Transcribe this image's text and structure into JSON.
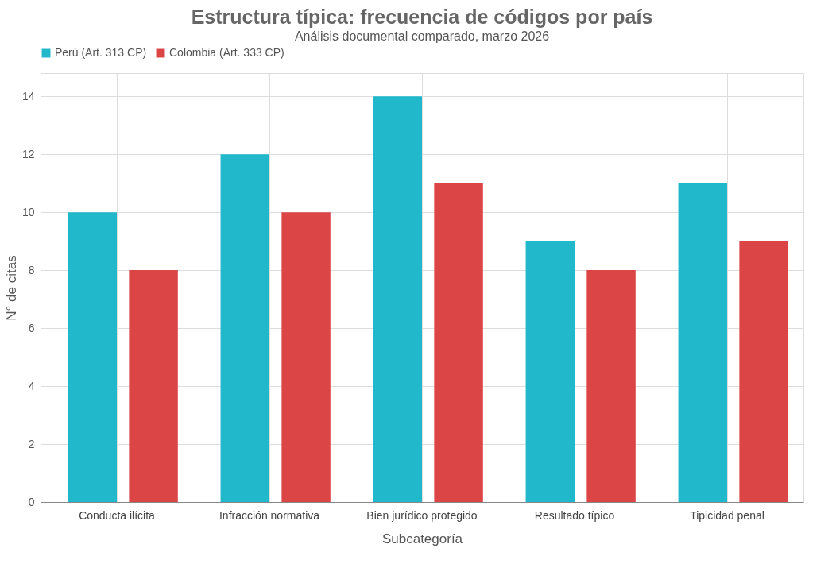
{
  "chart_data": {
    "type": "bar",
    "title": "Estructura típica: frecuencia de códigos por país",
    "subtitle": "Análisis documental comparado, marzo 2026",
    "xlabel": "Subcategoría",
    "ylabel": "N° de citas",
    "categories": [
      "Conducta ilícita",
      "Infracción normativa",
      "Bien jurídico protegido",
      "Resultado típico",
      "Tipicidad penal"
    ],
    "series": [
      {
        "name": "Perú (Art. 313 CP)",
        "color": "#22b8cc",
        "values": [
          10,
          12,
          14,
          9,
          11
        ]
      },
      {
        "name": "Colombia (Art. 333 CP)",
        "color": "#dc4545",
        "values": [
          8,
          10,
          11,
          8,
          9
        ]
      }
    ],
    "ylim": [
      0,
      14.8
    ],
    "yticks": [
      0,
      2,
      4,
      6,
      8,
      10,
      12,
      14
    ],
    "grid": true,
    "legend": "top"
  }
}
